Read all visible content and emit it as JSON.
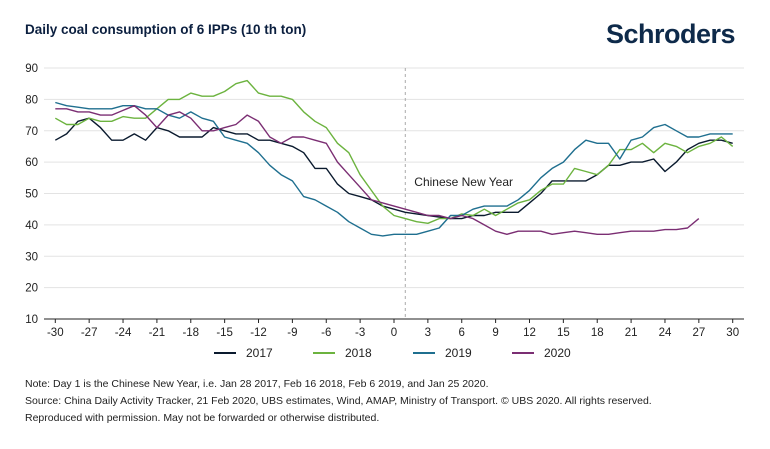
{
  "header": {
    "title": "Daily coal consumption of 6 IPPs (10 th ton)",
    "brand": "Schroders"
  },
  "chart_data": {
    "type": "line",
    "title": "Daily coal consumption of 6 IPPs (10 th ton)",
    "xlabel": "",
    "ylabel": "",
    "xlim": [
      -31,
      31
    ],
    "ylim": [
      10,
      90
    ],
    "x_ticks": [
      -30,
      -27,
      -24,
      -21,
      -18,
      -15,
      -12,
      -9,
      -6,
      -3,
      0,
      3,
      6,
      9,
      12,
      15,
      18,
      21,
      24,
      27,
      30
    ],
    "y_ticks": [
      10,
      20,
      30,
      40,
      50,
      60,
      70,
      80,
      90
    ],
    "grid": "horizontal",
    "legend_position": "bottom",
    "annotation": {
      "text": "Chinese New Year",
      "x": 1
    },
    "series": [
      {
        "name": "2017",
        "color": "#0a1a2e",
        "x": [
          -30,
          -29,
          -28,
          -27,
          -26,
          -25,
          -24,
          -23,
          -22,
          -21,
          -20,
          -19,
          -18,
          -17,
          -16,
          -15,
          -14,
          -13,
          -12,
          -11,
          -10,
          -9,
          -8,
          -7,
          -6,
          -5,
          -4,
          -3,
          -2,
          -1,
          0,
          1,
          2,
          3,
          4,
          5,
          6,
          7,
          8,
          9,
          10,
          11,
          12,
          13,
          14,
          15,
          16,
          17,
          18,
          19,
          20,
          21,
          22,
          23,
          24,
          25,
          26,
          27,
          28,
          29,
          30
        ],
        "values": [
          67,
          69,
          73,
          74,
          71,
          67,
          67,
          69,
          67,
          71,
          70,
          68,
          68,
          68,
          71,
          70,
          69,
          69,
          67,
          67,
          66,
          65,
          63,
          58,
          58,
          53,
          50,
          49,
          48,
          46,
          45,
          44,
          43.5,
          43,
          42.5,
          42,
          42,
          43,
          43,
          44,
          44,
          44,
          47,
          50,
          54,
          54,
          54,
          54,
          56,
          59,
          59,
          60,
          60,
          61,
          57,
          60,
          64,
          66,
          67,
          67,
          66
        ]
      },
      {
        "name": "2018",
        "color": "#6cb33f",
        "x": [
          -30,
          -29,
          -28,
          -27,
          -26,
          -25,
          -24,
          -23,
          -22,
          -21,
          -20,
          -19,
          -18,
          -17,
          -16,
          -15,
          -14,
          -13,
          -12,
          -11,
          -10,
          -9,
          -8,
          -7,
          -6,
          -5,
          -4,
          -3,
          -2,
          -1,
          0,
          1,
          2,
          3,
          4,
          5,
          6,
          7,
          8,
          9,
          10,
          11,
          12,
          13,
          14,
          15,
          16,
          17,
          18,
          19,
          20,
          21,
          22,
          23,
          24,
          25,
          26,
          27,
          28,
          29,
          30
        ],
        "values": [
          74,
          72,
          72,
          74,
          73,
          73,
          74.5,
          74,
          74,
          77,
          80,
          80,
          82,
          81,
          81,
          82.5,
          85,
          86,
          82,
          81,
          81,
          80,
          76,
          73,
          71,
          66,
          63,
          56,
          51,
          46,
          43,
          42,
          41,
          40.5,
          42,
          42,
          43.5,
          43,
          45,
          43,
          45,
          47,
          48,
          51,
          53,
          53,
          58,
          57,
          56,
          59,
          64,
          64,
          66,
          63,
          66,
          65,
          63,
          65,
          66,
          68,
          65
        ]
      },
      {
        "name": "2019",
        "color": "#1f6f8f",
        "x": [
          -30,
          -29,
          -28,
          -27,
          -26,
          -25,
          -24,
          -23,
          -22,
          -21,
          -20,
          -19,
          -18,
          -17,
          -16,
          -15,
          -14,
          -13,
          -12,
          -11,
          -10,
          -9,
          -8,
          -7,
          -6,
          -5,
          -4,
          -3,
          -2,
          -1,
          0,
          1,
          2,
          3,
          4,
          5,
          6,
          7,
          8,
          9,
          10,
          11,
          12,
          13,
          14,
          15,
          16,
          17,
          18,
          19,
          20,
          21,
          22,
          23,
          24,
          25,
          26,
          27,
          28,
          29,
          30
        ],
        "values": [
          79,
          78,
          77.5,
          77,
          77,
          77,
          78,
          78,
          77,
          77,
          75,
          74,
          76,
          74,
          73,
          68,
          67,
          66,
          63,
          59,
          56,
          54,
          49,
          48,
          46,
          44,
          41,
          39,
          37,
          36.5,
          37,
          37,
          37,
          38,
          39,
          43,
          43,
          45,
          46,
          46,
          46,
          48,
          51,
          55,
          58,
          60,
          64,
          67,
          66,
          66,
          61,
          67,
          68,
          71,
          72,
          70,
          68,
          68,
          69,
          69,
          69
        ]
      },
      {
        "name": "2020",
        "color": "#7b2e73",
        "x": [
          -30,
          -29,
          -28,
          -27,
          -26,
          -25,
          -24,
          -23,
          -22,
          -21,
          -20,
          -19,
          -18,
          -17,
          -16,
          -15,
          -14,
          -13,
          -12,
          -11,
          -10,
          -9,
          -8,
          -7,
          -6,
          -5,
          -4,
          -3,
          -2,
          -1,
          0,
          1,
          2,
          3,
          4,
          5,
          6,
          7,
          8,
          9,
          10,
          11,
          12,
          13,
          14,
          15,
          16,
          17,
          18,
          19,
          20,
          21,
          22,
          23,
          24,
          25,
          26,
          27
        ],
        "values": [
          77,
          77,
          76,
          76,
          75,
          75,
          76.5,
          78,
          75,
          71,
          75,
          76,
          74,
          70,
          70,
          71,
          72,
          75,
          73,
          68,
          66,
          68,
          68,
          67,
          66,
          60,
          56,
          52,
          48,
          47,
          46,
          45,
          44,
          43,
          43,
          42,
          43,
          42,
          40,
          38,
          37,
          38,
          38,
          38,
          37,
          37.5,
          38,
          37.5,
          37,
          37,
          37.5,
          38,
          38,
          38,
          38.5,
          38.5,
          39,
          42
        ]
      }
    ]
  },
  "notes": [
    "Note: Day 1 is the Chinese New Year, i.e. Jan 28 2017, Feb 16 2018, Feb 6 2019, and Jan 25 2020.",
    "Source: China Daily Activity Tracker, 21 Feb 2020, UBS estimates, Wind, AMAP, Ministry of Transport. © UBS 2020. All rights reserved.",
    "Reproduced with permission. May not be forwarded or otherwise distributed."
  ]
}
